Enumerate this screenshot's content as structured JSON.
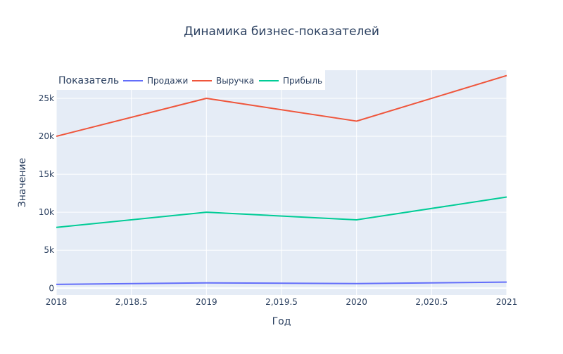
{
  "chart_data": {
    "type": "line",
    "title": "Динамика бизнес-показателей",
    "xlabel": "Год",
    "ylabel": "Значение",
    "legend_title": "Показатель",
    "legend_position": "top-left",
    "grid": true,
    "x": [
      2018,
      2019,
      2020,
      2021
    ],
    "x_ticks": [
      "2018",
      "2,018.5",
      "2019",
      "2,019.5",
      "2020",
      "2,020.5",
      "2021"
    ],
    "x_tick_values": [
      2018,
      2018.5,
      2019,
      2019.5,
      2020,
      2020.5,
      2021
    ],
    "xlim": [
      2018,
      2021
    ],
    "y_ticks": [
      "0",
      "5k",
      "10k",
      "15k",
      "20k",
      "25k"
    ],
    "y_tick_values": [
      0,
      5000,
      10000,
      15000,
      20000,
      25000
    ],
    "ylim": [
      -900,
      28700
    ],
    "series": [
      {
        "name": "Продажи",
        "color": "#636efa",
        "values": [
          500,
          700,
          600,
          800
        ]
      },
      {
        "name": "Выручка",
        "color": "#ef553b",
        "values": [
          20000,
          25000,
          22000,
          28000
        ]
      },
      {
        "name": "Прибыль",
        "color": "#00cc96",
        "values": [
          8000,
          10000,
          9000,
          12000
        ]
      }
    ]
  }
}
